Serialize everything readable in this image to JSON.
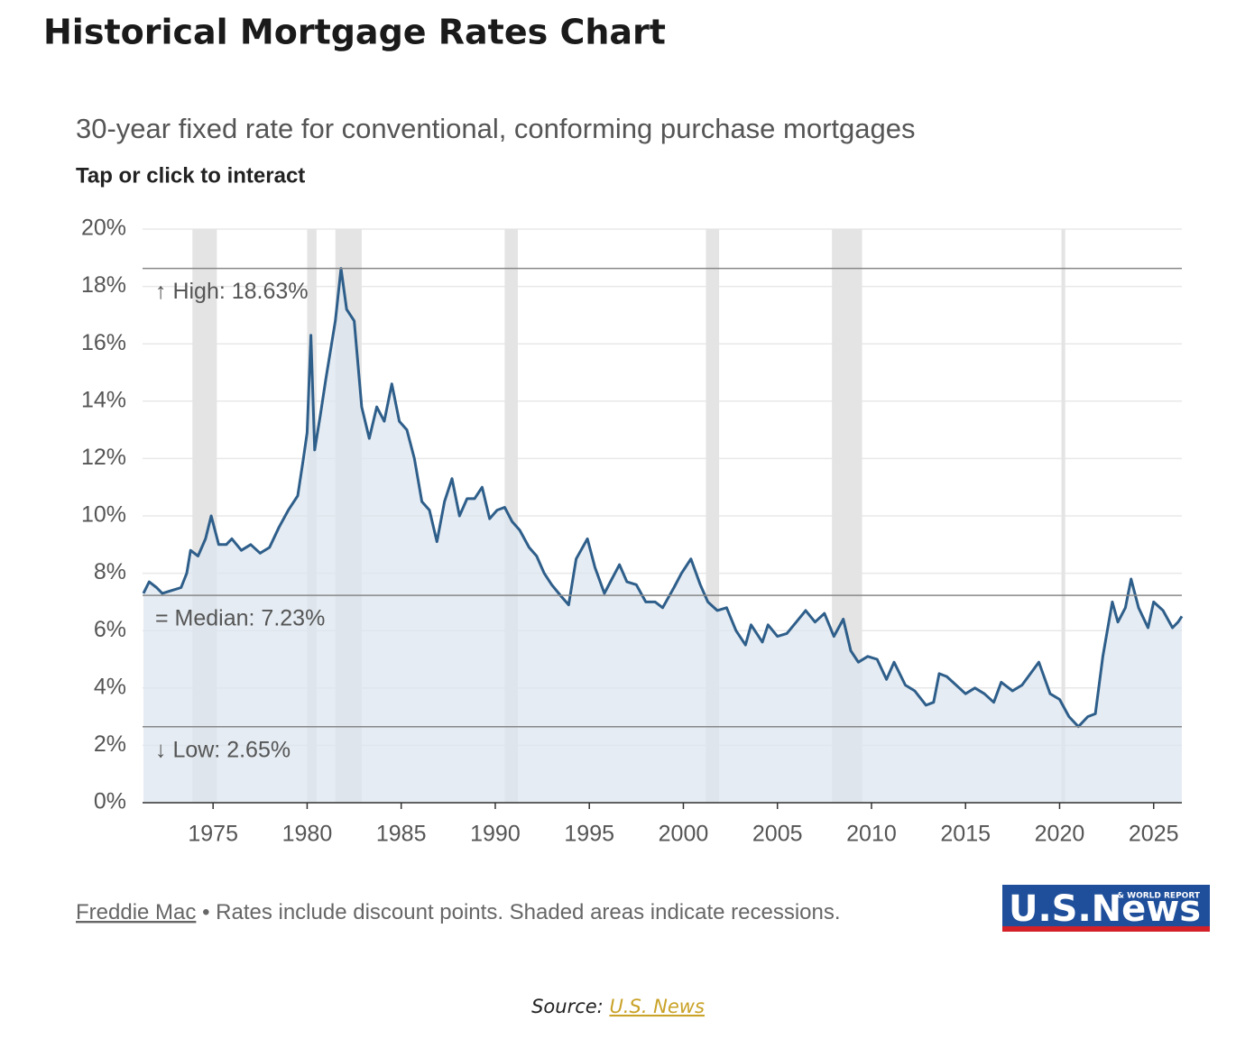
{
  "heading": "Historical Mortgage Rates Chart",
  "chart_data": {
    "type": "line",
    "title": "30-year fixed rate for conventional, conforming purchase mortgages",
    "subtitle": "Tap or click to interact",
    "color": "#2e5e8a",
    "area_color": "#dce6ef",
    "grid": true,
    "x": [
      1971.3,
      1971.6,
      1972.0,
      1972.3,
      1972.8,
      1973.3,
      1973.6,
      1973.8,
      1974.2,
      1974.6,
      1974.9,
      1975.3,
      1975.7,
      1976.0,
      1976.5,
      1977.0,
      1977.5,
      1978.0,
      1978.5,
      1979.0,
      1979.5,
      1979.8,
      1980.0,
      1980.2,
      1980.4,
      1980.7,
      1981.0,
      1981.5,
      1981.8,
      1982.1,
      1982.5,
      1982.9,
      1983.3,
      1983.7,
      1984.1,
      1984.5,
      1984.9,
      1985.3,
      1985.7,
      1986.1,
      1986.5,
      1986.9,
      1987.3,
      1987.7,
      1988.1,
      1988.5,
      1988.9,
      1989.3,
      1989.7,
      1990.1,
      1990.5,
      1990.9,
      1991.3,
      1991.8,
      1992.2,
      1992.6,
      1993.0,
      1993.5,
      1993.9,
      1994.3,
      1994.9,
      1995.3,
      1995.8,
      1996.2,
      1996.6,
      1997.0,
      1997.5,
      1998.0,
      1998.5,
      1998.9,
      1999.5,
      1999.9,
      2000.4,
      2000.9,
      2001.3,
      2001.8,
      2002.3,
      2002.8,
      2003.3,
      2003.6,
      2004.2,
      2004.5,
      2005.0,
      2005.5,
      2006.0,
      2006.5,
      2007.0,
      2007.5,
      2008.0,
      2008.5,
      2008.9,
      2009.3,
      2009.8,
      2010.3,
      2010.8,
      2011.2,
      2011.8,
      2012.3,
      2012.9,
      2013.3,
      2013.6,
      2014.0,
      2014.5,
      2015.0,
      2015.5,
      2016.0,
      2016.5,
      2016.9,
      2017.5,
      2018.0,
      2018.9,
      2019.5,
      2020.0,
      2020.5,
      2021.0,
      2021.5,
      2021.9,
      2022.3,
      2022.8,
      2023.1,
      2023.5,
      2023.8,
      2024.2,
      2024.7,
      2025.0,
      2025.5,
      2026.0,
      2026.3,
      2026.5
    ],
    "values": [
      7.3,
      7.7,
      7.5,
      7.3,
      7.4,
      7.5,
      8.0,
      8.8,
      8.6,
      9.2,
      10.0,
      9.0,
      9.0,
      9.2,
      8.8,
      9.0,
      8.7,
      8.9,
      9.6,
      10.2,
      10.7,
      12.0,
      12.9,
      16.3,
      12.3,
      13.5,
      14.8,
      16.8,
      18.63,
      17.2,
      16.8,
      13.8,
      12.7,
      13.8,
      13.3,
      14.6,
      13.3,
      13.0,
      12.0,
      10.5,
      10.2,
      9.1,
      10.5,
      11.3,
      10.0,
      10.6,
      10.6,
      11.0,
      9.9,
      10.2,
      10.3,
      9.8,
      9.5,
      8.9,
      8.6,
      8.0,
      7.6,
      7.2,
      6.9,
      8.5,
      9.2,
      8.2,
      7.3,
      7.8,
      8.3,
      7.7,
      7.6,
      7.0,
      7.0,
      6.8,
      7.5,
      8.0,
      8.5,
      7.6,
      7.0,
      6.7,
      6.8,
      6.0,
      5.5,
      6.2,
      5.6,
      6.2,
      5.8,
      5.9,
      6.3,
      6.7,
      6.3,
      6.6,
      5.8,
      6.4,
      5.3,
      4.9,
      5.1,
      5.0,
      4.3,
      4.9,
      4.1,
      3.9,
      3.4,
      3.5,
      4.5,
      4.4,
      4.1,
      3.8,
      4.0,
      3.8,
      3.5,
      4.2,
      3.9,
      4.1,
      4.9,
      3.8,
      3.6,
      3.0,
      2.65,
      3.0,
      3.1,
      5.1,
      7.0,
      6.3,
      6.8,
      7.8,
      6.8,
      6.1,
      7.0,
      6.7,
      6.1,
      6.3,
      6.5
    ],
    "recessions": [
      [
        1973.9,
        1975.2
      ],
      [
        1980.0,
        1980.5
      ],
      [
        1981.5,
        1982.9
      ],
      [
        1990.5,
        1991.2
      ],
      [
        2001.2,
        2001.9
      ],
      [
        2007.9,
        2009.5
      ],
      [
        2020.1,
        2020.3
      ]
    ],
    "xlim": [
      1971.25,
      2026.5
    ],
    "xticks": [
      1975,
      1980,
      1985,
      1990,
      1995,
      2000,
      2005,
      2010,
      2015,
      2020,
      2025
    ],
    "ylim": [
      0,
      20
    ],
    "yticks": [
      {
        "value": 0,
        "label": "0%"
      },
      {
        "value": 2,
        "label": "2%"
      },
      {
        "value": 4,
        "label": "4%"
      },
      {
        "value": 6,
        "label": "6%"
      },
      {
        "value": 8,
        "label": "8%"
      },
      {
        "value": 10,
        "label": "10%"
      },
      {
        "value": 12,
        "label": "12%"
      },
      {
        "value": 14,
        "label": "14%"
      },
      {
        "value": 16,
        "label": "16%"
      },
      {
        "value": 18,
        "label": "18%"
      },
      {
        "value": 20,
        "label": "20%"
      }
    ],
    "annotations": [
      {
        "label": "↑ High: 18.63%",
        "value": 18.63
      },
      {
        "label": "= Median: 7.23%",
        "value": 7.23
      },
      {
        "label": "↓ Low: 2.65%",
        "value": 2.65
      }
    ],
    "note_link": "Freddie Mac",
    "note": "• Rates include discount points. Shaded areas indicate recessions."
  },
  "logo": {
    "text": "U.S.News",
    "tagline": "& WORLD REPORT"
  },
  "source": {
    "label": "Source:",
    "link": "U.S. News"
  }
}
